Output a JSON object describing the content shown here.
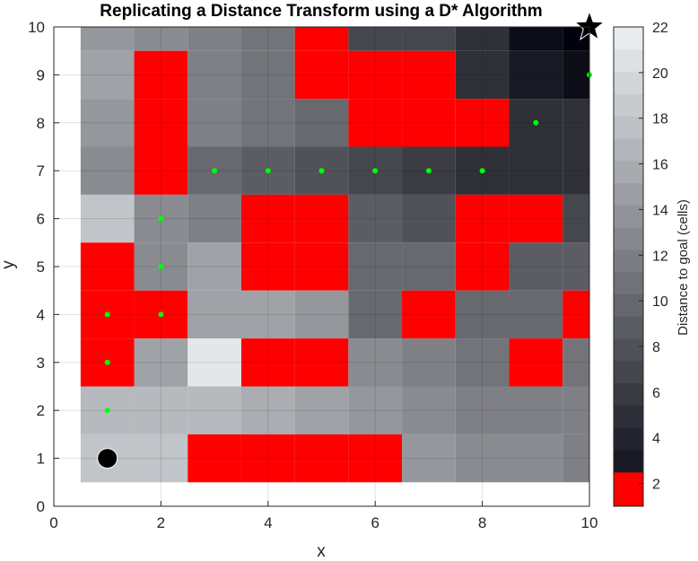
{
  "chart_data": {
    "type": "heatmap",
    "title": "Replicating a Distance Transform using a D* Algorithm",
    "xlabel": "x",
    "ylabel": "y",
    "xlim": [
      0,
      10
    ],
    "ylim": [
      0,
      10
    ],
    "x_ticks": [
      "0",
      "2",
      "4",
      "6",
      "8",
      "10"
    ],
    "y_ticks": [
      "0",
      "1",
      "2",
      "3",
      "4",
      "5",
      "6",
      "7",
      "8",
      "9",
      "10"
    ],
    "grid": true,
    "obstacle_color": "#ff0000",
    "obstacle_value": "inf",
    "rows_top_to_bottom_y10_to_y1": [
      [
        14,
        13,
        12,
        11,
        "inf",
        7,
        7,
        5,
        2,
        1
      ],
      [
        15,
        "inf",
        12,
        11,
        "inf",
        "inf",
        "inf",
        5,
        3,
        2
      ],
      [
        14,
        "inf",
        12,
        11,
        10,
        "inf",
        "inf",
        "inf",
        5,
        5
      ],
      [
        13,
        "inf",
        10,
        9,
        8,
        7,
        6,
        5,
        5,
        5
      ],
      [
        18,
        13,
        12,
        "inf",
        "inf",
        9,
        8,
        "inf",
        "inf",
        7
      ],
      [
        "inf",
        13,
        15,
        "inf",
        "inf",
        10,
        10,
        "inf",
        9,
        9
      ],
      [
        "inf",
        "inf",
        15,
        15,
        14,
        10,
        "inf",
        10,
        10,
        "inf"
      ],
      [
        "inf",
        15,
        21,
        "inf",
        "inf",
        13,
        12,
        11,
        "inf",
        11
      ],
      [
        17,
        17,
        17,
        16,
        15,
        14,
        13,
        12,
        12,
        12
      ],
      [
        18,
        18,
        "inf",
        "inf",
        "inf",
        "inf",
        14,
        13,
        13,
        12
      ]
    ],
    "path": [
      [
        1,
        1
      ],
      [
        1,
        2
      ],
      [
        1,
        3
      ],
      [
        1,
        4
      ],
      [
        2,
        4
      ],
      [
        2,
        5
      ],
      [
        2,
        6
      ],
      [
        3,
        7
      ],
      [
        4,
        7
      ],
      [
        5,
        7
      ],
      [
        6,
        7
      ],
      [
        7,
        7
      ],
      [
        8,
        7
      ],
      [
        9,
        8
      ],
      [
        10,
        9
      ],
      [
        10,
        10
      ]
    ],
    "path_color": "#00ff00",
    "start": [
      1,
      1
    ],
    "goal": [
      10,
      10
    ],
    "colorbar": {
      "label": "Distance to goal (cells)",
      "ticks": [
        "2",
        "4",
        "6",
        "8",
        "10",
        "12",
        "14",
        "16",
        "18",
        "20",
        "22"
      ],
      "range": [
        1,
        22
      ]
    }
  }
}
